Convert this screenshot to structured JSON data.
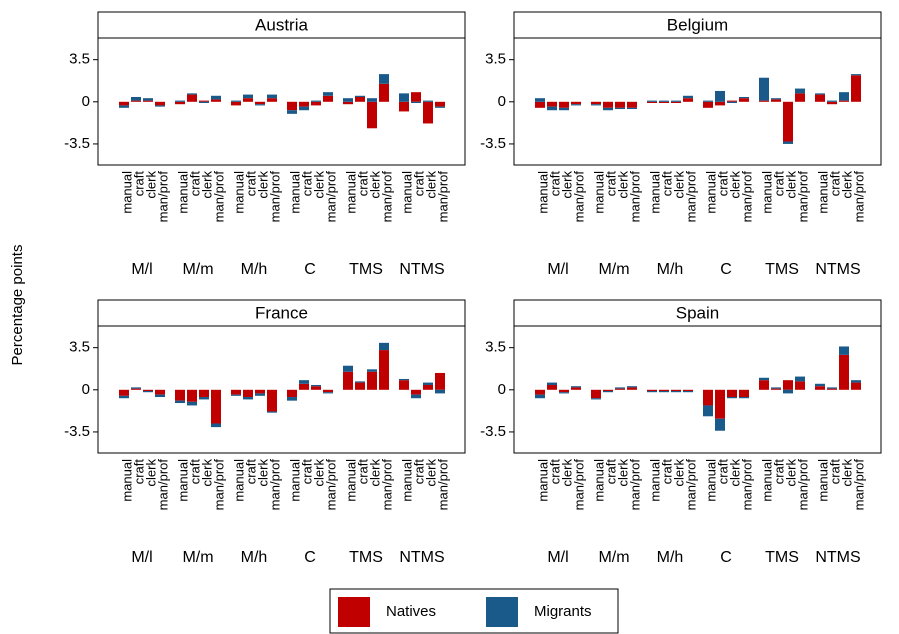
{
  "y_axis_label": "Percentage points",
  "chart_data": [
    {
      "type": "bar",
      "title": "Austria",
      "categories": [
        "manual",
        "craft",
        "clerk",
        "man/prof",
        "manual",
        "craft",
        "clerk",
        "man/prof",
        "manual",
        "craft",
        "clerk",
        "man/prof",
        "manual",
        "craft",
        "clerk",
        "man/prof",
        "manual",
        "craft",
        "clerk",
        "man/prof",
        "manual",
        "craft",
        "clerk",
        "man/prof"
      ],
      "groups": [
        "M/l",
        "M/m",
        "M/h",
        "C",
        "TMS",
        "NTMS"
      ],
      "series": [
        {
          "name": "Natives",
          "color": "#c00000",
          "values": [
            -0.3,
            0.1,
            0.1,
            -0.3,
            -0.2,
            0.6,
            0.1,
            0.2,
            -0.3,
            0.3,
            -0.2,
            0.3,
            -0.7,
            -0.4,
            -0.3,
            0.5,
            -0.2,
            0.4,
            -2.2,
            1.5,
            -0.8,
            0.8,
            -1.8,
            -0.4
          ]
        },
        {
          "name": "Migrants",
          "color": "#1a5a8a",
          "values": [
            -0.2,
            0.3,
            0.2,
            -0.1,
            0.1,
            0.1,
            -0.1,
            0.3,
            0.1,
            0.3,
            -0.1,
            0.3,
            -0.3,
            -0.3,
            0.1,
            0.3,
            0.3,
            0.1,
            0.3,
            0.8,
            0.7,
            -0.1,
            0.1,
            -0.1
          ]
        }
      ],
      "ylim": [
        -5.25,
        5.3
      ],
      "yticks": [
        3.5,
        0,
        -3.5
      ]
    },
    {
      "type": "bar",
      "title": "Belgium",
      "categories": [
        "manual",
        "craft",
        "clerk",
        "man/prof",
        "manual",
        "craft",
        "clerk",
        "man/prof",
        "manual",
        "craft",
        "clerk",
        "man/prof",
        "manual",
        "craft",
        "clerk",
        "man/prof",
        "manual",
        "craft",
        "clerk",
        "man/prof",
        "manual",
        "craft",
        "clerk",
        "man/prof"
      ],
      "groups": [
        "M/l",
        "M/m",
        "M/h",
        "C",
        "TMS",
        "NTMS"
      ],
      "series": [
        {
          "name": "Natives",
          "color": "#c00000",
          "values": [
            -0.5,
            -0.4,
            -0.5,
            -0.2,
            -0.2,
            -0.5,
            -0.5,
            -0.5,
            -0.1,
            -0.1,
            -0.1,
            0.3,
            -0.5,
            -0.3,
            0.1,
            0.3,
            0.1,
            0.2,
            -3.3,
            0.7,
            0.6,
            -0.2,
            0.1,
            2.2
          ]
        },
        {
          "name": "Migrants",
          "color": "#1a5a8a",
          "values": [
            0.3,
            -0.3,
            -0.2,
            -0.1,
            -0.1,
            -0.2,
            -0.1,
            -0.1,
            0.1,
            0.1,
            0.1,
            0.2,
            0.1,
            0.9,
            -0.1,
            0.1,
            1.9,
            0.1,
            -0.2,
            0.4,
            0.1,
            0.1,
            0.7,
            0.1
          ]
        }
      ],
      "ylim": [
        -5.25,
        5.3
      ],
      "yticks": [
        3.5,
        0,
        -3.5
      ]
    },
    {
      "type": "bar",
      "title": "France",
      "categories": [
        "manual",
        "craft",
        "clerk",
        "man/prof",
        "manual",
        "craft",
        "clerk",
        "man/prof",
        "manual",
        "craft",
        "clerk",
        "man/prof",
        "manual",
        "craft",
        "clerk",
        "man/prof",
        "manual",
        "craft",
        "clerk",
        "man/prof",
        "manual",
        "craft",
        "clerk",
        "man/prof"
      ],
      "groups": [
        "M/l",
        "M/m",
        "M/h",
        "C",
        "TMS",
        "NTMS"
      ],
      "series": [
        {
          "name": "Natives",
          "color": "#c00000",
          "values": [
            -0.5,
            0.1,
            -0.1,
            -0.4,
            -0.9,
            -1.0,
            -0.6,
            -2.8,
            -0.4,
            -0.6,
            -0.3,
            -1.8,
            -0.6,
            0.5,
            0.3,
            -0.2,
            1.5,
            0.6,
            1.5,
            3.3,
            0.8,
            -0.4,
            0.4,
            1.4
          ]
        },
        {
          "name": "Migrants",
          "color": "#1a5a8a",
          "values": [
            -0.2,
            0.1,
            -0.1,
            -0.2,
            -0.2,
            -0.3,
            -0.2,
            -0.3,
            -0.1,
            -0.2,
            -0.2,
            -0.1,
            -0.3,
            0.3,
            0.1,
            -0.1,
            0.5,
            0.1,
            0.2,
            0.6,
            0.1,
            -0.3,
            0.2,
            -0.3
          ]
        }
      ],
      "ylim": [
        -5.25,
        5.3
      ],
      "yticks": [
        3.5,
        0,
        -3.5
      ]
    },
    {
      "type": "bar",
      "title": "Spain",
      "categories": [
        "manual",
        "craft",
        "clerk",
        "man/prof",
        "manual",
        "craft",
        "clerk",
        "man/prof",
        "manual",
        "craft",
        "clerk",
        "man/prof",
        "manual",
        "craft",
        "clerk",
        "man/prof",
        "manual",
        "craft",
        "clerk",
        "man/prof",
        "manual",
        "craft",
        "clerk",
        "man/prof"
      ],
      "groups": [
        "M/l",
        "M/m",
        "M/h",
        "C",
        "TMS",
        "NTMS"
      ],
      "series": [
        {
          "name": "Natives",
          "color": "#c00000",
          "values": [
            -0.4,
            0.4,
            -0.2,
            0.2,
            -0.7,
            -0.1,
            0.1,
            0.2,
            -0.1,
            -0.1,
            -0.1,
            -0.1,
            -1.3,
            -2.4,
            -0.6,
            -0.6,
            0.8,
            0.1,
            0.8,
            0.7,
            0.3,
            0.1,
            2.9,
            0.6
          ]
        },
        {
          "name": "Migrants",
          "color": "#1a5a8a",
          "values": [
            -0.3,
            0.2,
            -0.1,
            0.1,
            -0.1,
            -0.1,
            0.1,
            0.1,
            -0.1,
            -0.1,
            -0.1,
            -0.1,
            -0.9,
            -1.0,
            -0.1,
            -0.1,
            0.2,
            0.1,
            -0.3,
            0.4,
            0.2,
            0.1,
            0.7,
            0.2
          ]
        }
      ],
      "ylim": [
        -5.25,
        5.3
      ],
      "yticks": [
        3.5,
        0,
        -3.5
      ]
    }
  ]
}
